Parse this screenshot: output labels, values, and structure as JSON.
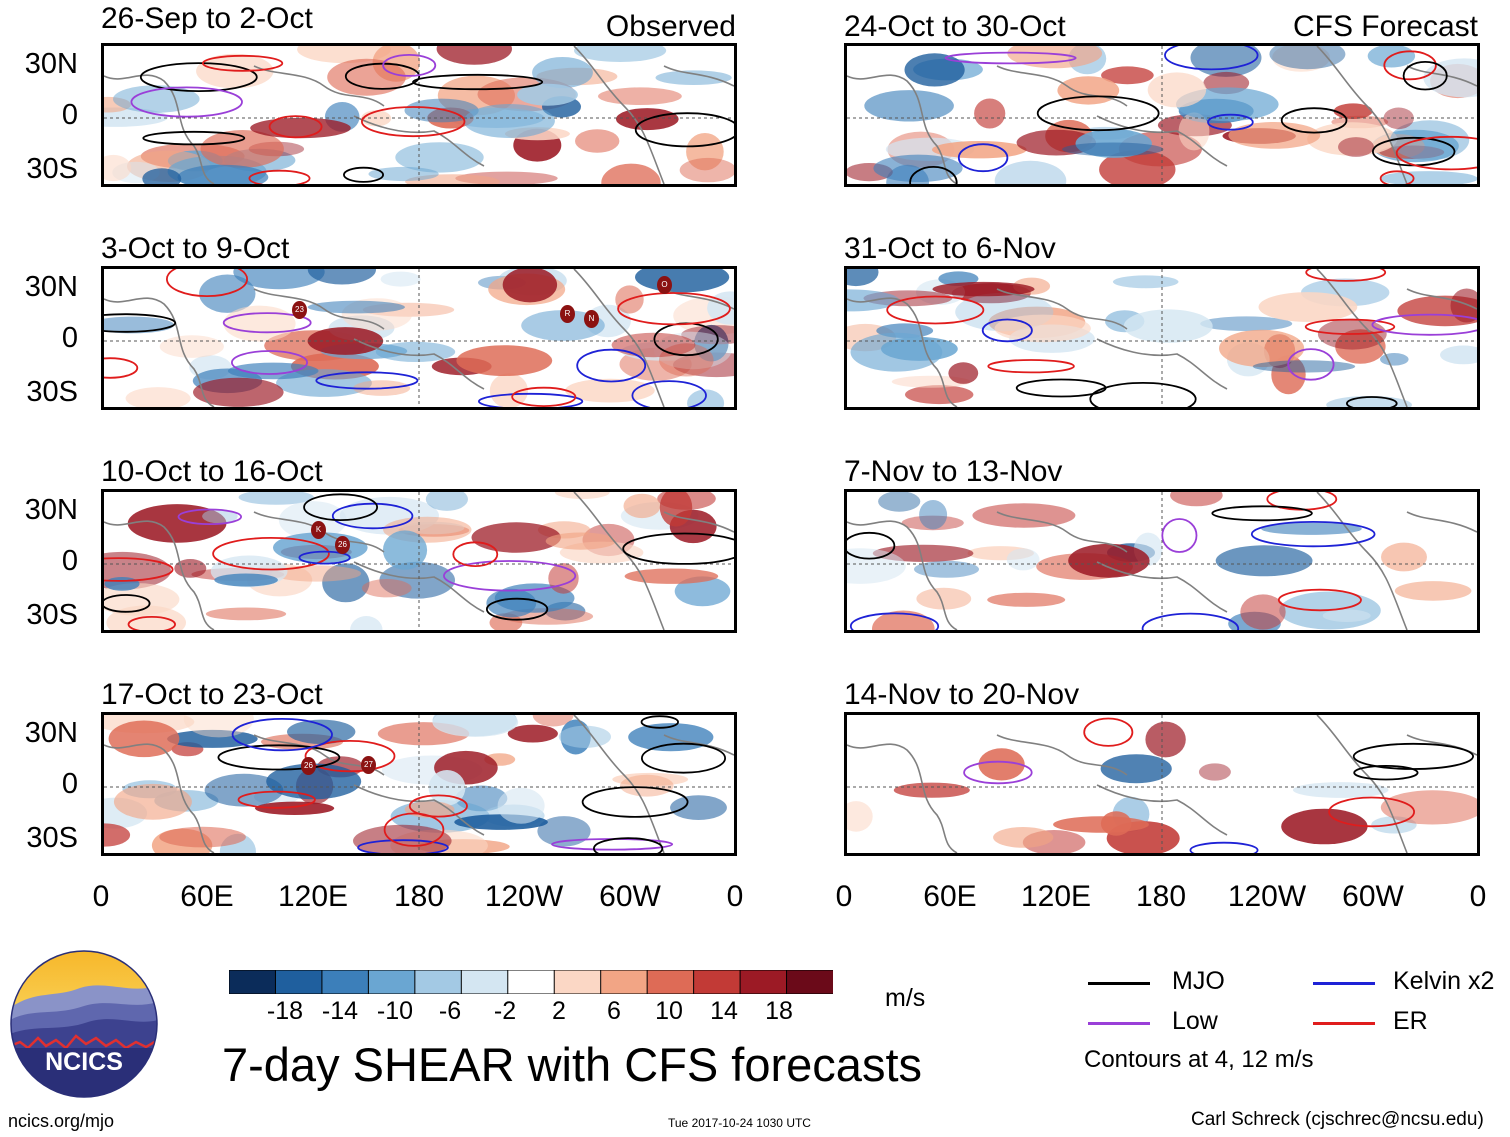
{
  "panels_observed": [
    {
      "label": "26-Sep to 2-Oct",
      "tag": "Observed"
    },
    {
      "label": "3-Oct to 9-Oct",
      "tag": ""
    },
    {
      "label": "10-Oct to 16-Oct",
      "tag": ""
    },
    {
      "label": "17-Oct to 23-Oct",
      "tag": ""
    }
  ],
  "panels_forecast": [
    {
      "label": "24-Oct to 30-Oct",
      "tag": "CFS Forecast"
    },
    {
      "label": "31-Oct to 6-Nov",
      "tag": ""
    },
    {
      "label": "7-Nov to 13-Nov",
      "tag": ""
    },
    {
      "label": "14-Nov to 20-Nov",
      "tag": ""
    }
  ],
  "lat_labels": [
    "30N",
    "0",
    "30S"
  ],
  "lon_labels": [
    "0",
    "60E",
    "120E",
    "180",
    "120W",
    "60W",
    "0"
  ],
  "colorbar": {
    "ticks": [
      "-18",
      "-14",
      "-10",
      "-6",
      "-2",
      "2",
      "6",
      "10",
      "14",
      "18"
    ],
    "units": "m/s",
    "colors": [
      "#0b2c5a",
      "#1f5f9e",
      "#3c7fba",
      "#6aa6d2",
      "#a3c9e4",
      "#d4e6f2",
      "#ffffff",
      "#fbd7c5",
      "#f2a585",
      "#de6b56",
      "#c23a36",
      "#9c1a25",
      "#6b0a19"
    ]
  },
  "legend": {
    "items": [
      {
        "name": "MJO",
        "color": "#000000"
      },
      {
        "name": "Kelvin x2",
        "color": "#1e22d6"
      },
      {
        "name": "Low",
        "color": "#9a3fd8"
      },
      {
        "name": "ER",
        "color": "#e01c1c"
      }
    ],
    "note": "Contours at 4, 12 m/s"
  },
  "main_title": "7-day SHEAR with CFS forecasts",
  "logo": {
    "text": "NCICS"
  },
  "footer": {
    "left": "ncics.org/mjo",
    "center": "Tue 2017-10-24 1030 UTC",
    "right": "Carl Schreck (cjschrec@ncsu.edu)"
  },
  "storm_labels": {
    "p1": [
      "23",
      "R",
      "N",
      "O"
    ],
    "p2": [
      "K",
      "26"
    ],
    "p3": [
      "26",
      "27"
    ]
  }
}
